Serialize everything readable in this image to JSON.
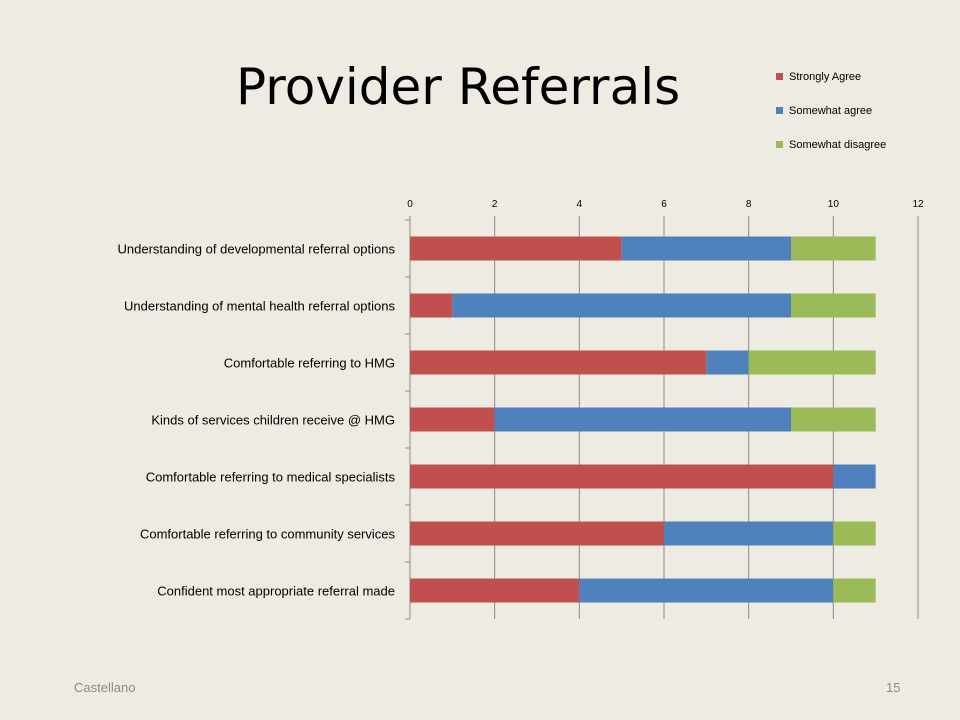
{
  "slide": {
    "title": "Provider Referrals",
    "footer_left": "Castellano",
    "page_number": "15"
  },
  "chart_data": {
    "type": "bar",
    "orientation": "horizontal",
    "stacked": true,
    "categories": [
      "Understanding of developmental referral options",
      "Understanding of mental health referral options",
      "Comfortable referring to HMG",
      "Kinds of services children receive @ HMG",
      "Comfortable referring to medical specialists",
      "Comfortable referring to community services",
      "Confident most appropriate referral made"
    ],
    "series": [
      {
        "name": "Strongly Agree",
        "color": "#C0504D",
        "values": [
          5,
          1,
          7,
          2,
          10,
          6,
          4
        ]
      },
      {
        "name": "Somewhat agree",
        "color": "#4F81BD",
        "values": [
          4,
          8,
          1,
          7,
          1,
          4,
          6
        ]
      },
      {
        "name": "Somewhat disagree",
        "color": "#9BBB59",
        "values": [
          2,
          2,
          3,
          2,
          0,
          1,
          1
        ]
      }
    ],
    "xlim": [
      0,
      12
    ],
    "xticks": [
      0,
      2,
      4,
      6,
      8,
      10,
      12
    ],
    "x_axis_position": "top",
    "grid": true,
    "legend_position": "top-right"
  }
}
